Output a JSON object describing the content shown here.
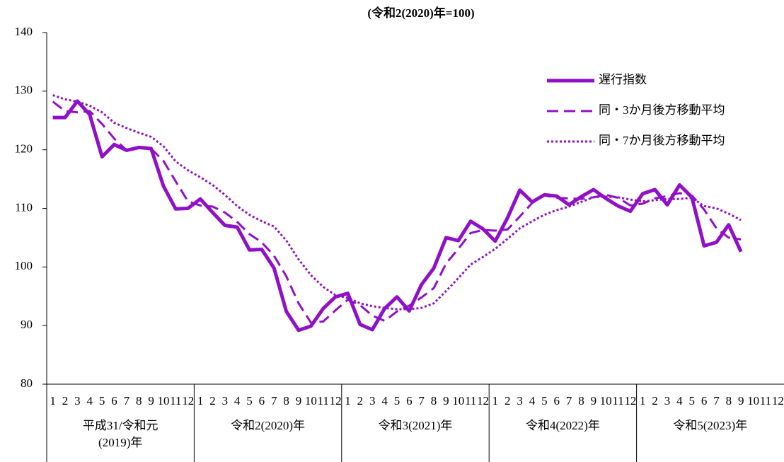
{
  "chart_data": {
    "type": "line",
    "subtitle": "(令和2(2020)年=100)",
    "categories": [
      "1",
      "2",
      "3",
      "4",
      "5",
      "6",
      "7",
      "8",
      "9",
      "10",
      "11",
      "12",
      "1",
      "2",
      "3",
      "4",
      "5",
      "6",
      "7",
      "8",
      "9",
      "10",
      "11",
      "12",
      "1",
      "2",
      "3",
      "4",
      "5",
      "6",
      "7",
      "8",
      "9",
      "10",
      "11",
      "12",
      "1",
      "2",
      "3",
      "4",
      "5",
      "6",
      "7",
      "8",
      "9",
      "10",
      "11",
      "12",
      "1",
      "2",
      "3",
      "4",
      "5",
      "6",
      "7",
      "8",
      "9",
      "10",
      "11",
      "12"
    ],
    "category_groups": [
      "平成31/令和元(2019)年",
      "令和2(2020)年",
      "令和3(2021)年",
      "令和4(2022)年",
      "令和5(2023)年"
    ],
    "ylim": [
      80,
      140
    ],
    "yticks": [
      80,
      90,
      100,
      110,
      120,
      130,
      140
    ],
    "grid": false,
    "series": [
      {
        "name": "遅行指数",
        "color": "#9010c8",
        "style": "solid",
        "values": [
          125.5,
          125.5,
          128.3,
          126.0,
          118.8,
          120.9,
          119.9,
          120.4,
          120.2,
          113.8,
          109.9,
          110.0,
          111.6,
          109.3,
          107.1,
          106.8,
          102.9,
          103.0,
          99.8,
          92.4,
          89.2,
          89.9,
          92.9,
          94.9,
          95.5,
          90.2,
          89.3,
          92.9,
          94.9,
          92.5,
          97.0,
          99.8,
          105.0,
          104.5,
          107.8,
          106.5,
          104.4,
          108.4,
          113.1,
          111.1,
          112.3,
          112.1,
          110.6,
          112.0,
          113.2,
          111.7,
          110.4,
          109.5,
          112.5,
          113.2,
          110.6,
          114.0,
          111.9,
          103.6,
          104.2,
          107.2,
          102.6,
          null,
          null,
          null
        ]
      },
      {
        "name": "同・3か月後方移動平均",
        "color": "#9010c8",
        "style": "dashed",
        "values": [
          128.2,
          126.6,
          126.4,
          126.6,
          124.4,
          121.9,
          119.9,
          120.4,
          120.2,
          118.1,
          114.6,
          111.2,
          110.5,
          110.3,
          109.3,
          107.7,
          105.6,
          104.2,
          101.9,
          98.4,
          93.8,
          90.5,
          90.7,
          92.6,
          94.4,
          93.5,
          91.7,
          90.8,
          92.4,
          93.4,
          94.8,
          96.4,
          100.6,
          103.1,
          105.8,
          106.3,
          106.2,
          106.4,
          108.6,
          110.9,
          112.2,
          111.8,
          111.7,
          111.6,
          111.9,
          112.3,
          111.8,
          110.5,
          110.8,
          111.7,
          112.1,
          112.6,
          112.2,
          109.8,
          106.6,
          105.0,
          104.7,
          null,
          null,
          null
        ]
      },
      {
        "name": "同・7か月後方移動平均",
        "color": "#9010c8",
        "style": "dotted",
        "values": [
          129.3,
          128.6,
          128.2,
          127.5,
          126.4,
          124.6,
          123.7,
          122.9,
          122.2,
          120.6,
          118.0,
          116.5,
          115.3,
          114.0,
          112.3,
          110.4,
          108.9,
          107.8,
          106.9,
          104.5,
          101.3,
          98.6,
          96.6,
          95.2,
          94.7,
          93.8,
          93.3,
          93.0,
          92.8,
          92.8,
          93.0,
          93.8,
          95.9,
          98.1,
          100.4,
          101.7,
          103.1,
          104.8,
          106.6,
          107.8,
          108.9,
          109.7,
          110.3,
          111.1,
          111.9,
          112.0,
          111.9,
          111.5,
          111.2,
          111.4,
          111.6,
          111.6,
          111.8,
          110.4,
          110.0,
          109.1,
          108.0,
          null,
          null,
          null
        ]
      }
    ]
  }
}
